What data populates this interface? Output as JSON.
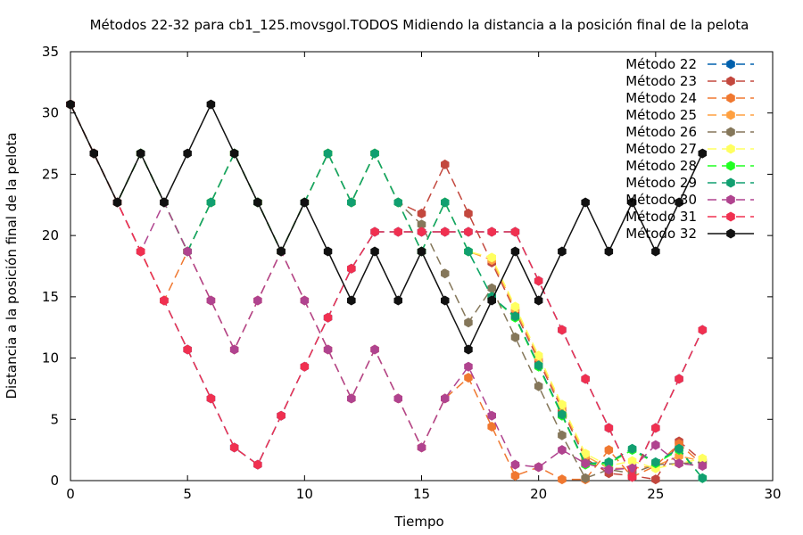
{
  "chart_data": {
    "type": "line",
    "title": "Métodos 22-32 para cb1_125.movsgol.TODOS Midiendo la distancia a la posición final de la pelota",
    "xlabel": "Tiempo",
    "ylabel": "Distancia a la posición final de la pelota",
    "xlim": [
      0,
      30
    ],
    "ylim": [
      0,
      35
    ],
    "xticks": [
      0,
      5,
      10,
      15,
      20,
      25,
      30
    ],
    "yticks": [
      0,
      5,
      10,
      15,
      20,
      25,
      30,
      35
    ],
    "grid": false,
    "legend_position": "top-right",
    "series": [
      {
        "name": "Método 22",
        "color": "#0060ad",
        "dashed": true,
        "x": [
          0,
          1,
          2,
          3,
          4,
          5,
          6,
          7,
          8,
          9,
          10,
          11,
          12,
          13,
          14,
          15,
          16,
          17,
          18,
          19,
          20,
          21,
          22,
          23,
          24,
          25,
          26,
          27
        ],
        "y": [
          30.7,
          26.7,
          22.7,
          18.7,
          14.7,
          10.7,
          6.7,
          2.7,
          1.3,
          5.3,
          9.3,
          13.3,
          17.3,
          20.3,
          20.3,
          20.3,
          20.3,
          20.3,
          20.3,
          20.3,
          16.3,
          12.3,
          8.3,
          4.3,
          0.3,
          4.3,
          8.3,
          12.3
        ]
      },
      {
        "name": "Método 23",
        "color": "#c3483e",
        "dashed": true,
        "x": [
          0,
          1,
          2,
          3,
          4,
          5,
          6,
          7,
          8,
          9,
          10,
          11,
          12,
          13,
          14,
          15,
          16,
          17,
          18,
          19,
          20,
          21,
          22,
          23,
          24,
          25,
          26,
          27
        ],
        "y": [
          30.7,
          26.7,
          22.7,
          26.7,
          22.7,
          18.7,
          22.7,
          26.7,
          22.7,
          18.7,
          22.7,
          26.7,
          22.7,
          26.7,
          22.7,
          21.8,
          25.8,
          21.8,
          17.8,
          13.8,
          9.8,
          5.8,
          1.8,
          0.6,
          0.4,
          0.1,
          3.2,
          1.6
        ]
      },
      {
        "name": "Método 24",
        "color": "#f07830",
        "dashed": true,
        "x": [
          0,
          1,
          2,
          3,
          4,
          5,
          6,
          7,
          8,
          9,
          10,
          11,
          12,
          13,
          14,
          15,
          16,
          17,
          18,
          19,
          20,
          21,
          22,
          23,
          24,
          25,
          26,
          27
        ],
        "y": [
          30.7,
          26.7,
          22.7,
          18.7,
          14.7,
          18.7,
          14.7,
          10.7,
          14.7,
          18.7,
          14.7,
          10.7,
          6.7,
          10.7,
          6.7,
          2.7,
          6.7,
          8.4,
          4.4,
          0.4,
          1.1,
          0.1,
          0.1,
          2.5,
          0.3,
          1.2,
          3.0,
          1.3
        ]
      },
      {
        "name": "Método 25",
        "color": "#ffa040",
        "dashed": true,
        "x": [
          0,
          1,
          2,
          3,
          4,
          5,
          6,
          7,
          8,
          9,
          10,
          11,
          12,
          13,
          14,
          15,
          16,
          17,
          18,
          19,
          20,
          21,
          22,
          23,
          24,
          25,
          26,
          27
        ],
        "y": [
          30.7,
          26.7,
          22.7,
          26.7,
          22.7,
          18.7,
          22.7,
          26.7,
          22.7,
          18.7,
          22.7,
          26.7,
          22.7,
          26.7,
          22.7,
          18.7,
          22.7,
          18.7,
          18.0,
          14.0,
          10.0,
          6.0,
          2.0,
          1.0,
          1.0,
          1.2,
          2.0,
          1.6
        ]
      },
      {
        "name": "Método 26",
        "color": "#85775a",
        "dashed": true,
        "x": [
          0,
          1,
          2,
          3,
          4,
          5,
          6,
          7,
          8,
          9,
          10,
          11,
          12,
          13,
          14,
          15,
          16,
          17,
          18,
          19,
          20,
          21,
          22,
          23,
          24,
          25,
          26,
          27
        ],
        "y": [
          30.7,
          26.7,
          22.7,
          26.7,
          22.7,
          18.7,
          22.7,
          26.7,
          22.7,
          18.7,
          22.7,
          26.7,
          22.7,
          26.7,
          22.7,
          20.9,
          16.9,
          12.9,
          15.7,
          11.7,
          7.7,
          3.7,
          0.2,
          0.9,
          0.6,
          1.3,
          1.4,
          1.5
        ]
      },
      {
        "name": "Método 27",
        "color": "#ffff60",
        "dashed": true,
        "x": [
          0,
          1,
          2,
          3,
          4,
          5,
          6,
          7,
          8,
          9,
          10,
          11,
          12,
          13,
          14,
          15,
          16,
          17,
          18,
          19,
          20,
          21,
          22,
          23,
          24,
          25,
          26,
          27
        ],
        "y": [
          30.7,
          26.7,
          22.7,
          26.7,
          22.7,
          18.7,
          22.7,
          26.7,
          22.7,
          18.7,
          22.7,
          26.7,
          22.7,
          26.7,
          22.7,
          18.7,
          22.7,
          18.7,
          18.2,
          14.2,
          10.2,
          6.2,
          2.2,
          1.2,
          1.6,
          1.0,
          1.4,
          1.8
        ]
      },
      {
        "name": "Método 28",
        "color": "#20ff20",
        "dashed": true,
        "x": [
          0,
          1,
          2,
          3,
          4,
          5,
          6,
          7,
          8,
          9,
          10,
          11,
          12,
          13,
          14,
          15,
          16,
          17,
          18,
          19,
          20,
          21,
          22,
          23,
          24,
          25,
          26,
          27
        ],
        "y": [
          30.7,
          26.7,
          22.7,
          26.7,
          22.7,
          18.7,
          22.7,
          26.7,
          22.7,
          18.7,
          22.7,
          26.7,
          22.7,
          26.7,
          22.7,
          18.7,
          22.7,
          18.7,
          15.0,
          13.3,
          9.3,
          5.3,
          1.3,
          1.4,
          2.5,
          1.4,
          2.5,
          0.2
        ]
      },
      {
        "name": "Método 29",
        "color": "#119f70",
        "dashed": true,
        "x": [
          0,
          1,
          2,
          3,
          4,
          5,
          6,
          7,
          8,
          9,
          10,
          11,
          12,
          13,
          14,
          15,
          16,
          17,
          18,
          19,
          20,
          21,
          22,
          23,
          24,
          25,
          26,
          27
        ],
        "y": [
          30.7,
          26.7,
          22.7,
          26.7,
          22.7,
          18.7,
          22.7,
          26.7,
          22.7,
          18.7,
          22.7,
          26.7,
          22.7,
          26.7,
          22.7,
          18.7,
          22.7,
          18.7,
          15.0,
          13.4,
          9.4,
          5.4,
          1.4,
          1.5,
          2.6,
          1.5,
          2.6,
          0.2
        ]
      },
      {
        "name": "Método 30",
        "color": "#b0438f",
        "dashed": true,
        "x": [
          0,
          1,
          2,
          3,
          4,
          5,
          6,
          7,
          8,
          9,
          10,
          11,
          12,
          13,
          14,
          15,
          16,
          17,
          18,
          19,
          20,
          21,
          22,
          23,
          24,
          25,
          26,
          27
        ],
        "y": [
          30.7,
          26.7,
          22.7,
          18.7,
          22.7,
          18.7,
          14.7,
          10.7,
          14.7,
          18.7,
          14.7,
          10.7,
          6.7,
          10.7,
          6.7,
          2.7,
          6.7,
          9.3,
          5.3,
          1.3,
          1.1,
          2.5,
          1.4,
          0.9,
          1.0,
          2.9,
          1.4,
          1.2
        ]
      },
      {
        "name": "Método 31",
        "color": "#f03050",
        "dashed": true,
        "x": [
          0,
          1,
          2,
          3,
          4,
          5,
          6,
          7,
          8,
          9,
          10,
          11,
          12,
          13,
          14,
          15,
          16,
          17,
          18,
          19,
          20,
          21,
          22,
          23,
          24,
          25,
          26,
          27
        ],
        "y": [
          30.7,
          26.7,
          22.7,
          18.7,
          14.7,
          10.7,
          6.7,
          2.7,
          1.3,
          5.3,
          9.3,
          13.3,
          17.3,
          20.3,
          20.3,
          20.3,
          20.3,
          20.3,
          20.3,
          20.3,
          16.3,
          12.3,
          8.3,
          4.3,
          0.3,
          4.3,
          8.3,
          12.3
        ]
      },
      {
        "name": "Método 32",
        "color": "#111111",
        "dashed": false,
        "x": [
          0,
          1,
          2,
          3,
          4,
          5,
          6,
          7,
          8,
          9,
          10,
          11,
          12,
          13,
          14,
          15,
          16,
          17,
          18,
          19,
          20,
          21,
          22,
          23,
          24,
          25,
          26,
          27
        ],
        "y": [
          30.7,
          26.7,
          22.7,
          26.7,
          22.7,
          26.7,
          30.7,
          26.7,
          22.7,
          18.7,
          22.7,
          18.7,
          14.7,
          18.7,
          14.7,
          18.7,
          14.7,
          10.7,
          14.7,
          18.7,
          14.7,
          18.7,
          22.7,
          18.7,
          22.7,
          18.7,
          22.7,
          26.7
        ]
      }
    ]
  }
}
